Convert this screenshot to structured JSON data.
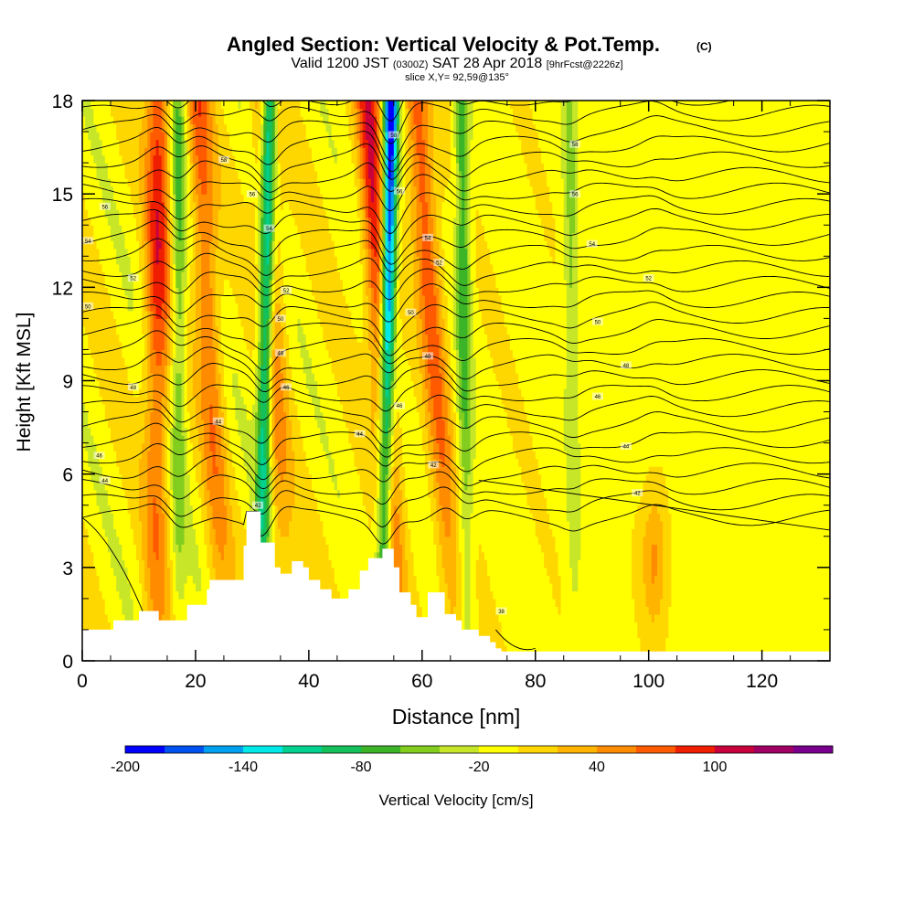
{
  "header": {
    "title": "Angled Section: Vertical Velocity & Pot.Temp.",
    "title_mark": "(C)",
    "valid_prefix": "Valid 1200 JST",
    "valid_zulu": "(0300Z)",
    "valid_date": "SAT 28 Apr 2018",
    "forecast_tag": "[9hrFcst@2226z]",
    "slice_info": "slice X,Y= 92,59@135°"
  },
  "chart_data": {
    "type": "heatmap",
    "xlabel": "Distance [nm]",
    "ylabel": "Height [Kft MSL]",
    "xlim": [
      0,
      132
    ],
    "ylim": [
      0,
      18
    ],
    "x_ticks": [
      0,
      20,
      40,
      60,
      80,
      100,
      120
    ],
    "y_ticks": [
      0,
      3,
      6,
      9,
      12,
      15,
      18
    ],
    "x_tick_labels": [
      "0",
      "20",
      "40",
      "60",
      "80",
      "100",
      "120"
    ],
    "y_tick_labels": [
      "0",
      "3",
      "6",
      "9",
      "12",
      "15",
      "18"
    ],
    "grid": false,
    "colorbar": {
      "label": "Vertical Velocity [cm/s]",
      "tick_values": [
        -200,
        -140,
        -80,
        -20,
        40,
        100
      ],
      "tick_labels": [
        "-200",
        "-140",
        "-80",
        "-20",
        "40",
        "100"
      ],
      "levels": [
        -200,
        -180,
        -160,
        -140,
        -120,
        -100,
        -80,
        -60,
        -40,
        -20,
        0,
        20,
        40,
        60,
        80,
        100,
        120,
        140
      ],
      "colors": [
        "#0000ff",
        "#0052f0",
        "#00a0f0",
        "#00e8e8",
        "#00d090",
        "#14c05a",
        "#3cb428",
        "#82cd1e",
        "#c8e628",
        "#ffff00",
        "#ffd700",
        "#ffb400",
        "#ff8c00",
        "#ff5a00",
        "#f01e00",
        "#c8003c",
        "#a00064",
        "#78008c"
      ]
    },
    "series": [
      {
        "name": "Vertical Velocity",
        "units": "cm/s",
        "representation": "filled contours along cross-section"
      },
      {
        "name": "Pot.Temp.",
        "units": "C",
        "representation": "line contours"
      }
    ],
    "terrain_profile": {
      "x": [
        0,
        5,
        5.5,
        10,
        13,
        13.5,
        18,
        18.5,
        22,
        22.5,
        27,
        28.5,
        29,
        31,
        31.5,
        34,
        35,
        37,
        39,
        40,
        42,
        44,
        45.5,
        47,
        49,
        50.5,
        53,
        54,
        55,
        56,
        58,
        59,
        61,
        62,
        64,
        66,
        67,
        70,
        72,
        73,
        74,
        132
      ],
      "height_kft": [
        1.0,
        1.0,
        1.3,
        1.6,
        1.6,
        1.3,
        1.3,
        1.8,
        2.3,
        2.6,
        2.6,
        3.7,
        4.8,
        4.8,
        3.8,
        3.0,
        2.8,
        3.2,
        3.0,
        2.6,
        2.3,
        2.0,
        2.0,
        2.3,
        2.9,
        3.3,
        3.6,
        3.6,
        3.0,
        2.2,
        1.8,
        1.4,
        2.2,
        2.2,
        1.5,
        1.3,
        1.0,
        0.8,
        0.6,
        0.4,
        0.3,
        0.3
      ]
    },
    "updraft_bands": [
      {
        "x_base": 13,
        "x_top": 13.5,
        "w_max_cm_s": 90
      },
      {
        "x_base": 25,
        "x_top": 20.5,
        "w_max_cm_s": 70
      },
      {
        "x_base": 36,
        "x_top": 32,
        "w_max_cm_s": 60
      },
      {
        "x_base": 56,
        "x_top": 50.5,
        "w_max_cm_s": 100
      },
      {
        "x_base": 66,
        "x_top": 59,
        "w_max_cm_s": 80
      },
      {
        "x_base": 101,
        "x_top": 101,
        "w_max_cm_s": 50
      }
    ],
    "downdraft_bands": [
      {
        "x_base": 31.5,
        "x_top": 33,
        "w_min_cm_s": -150
      },
      {
        "x_base": 53,
        "x_top": 54.5,
        "w_min_cm_s": -200
      },
      {
        "x_base": 68,
        "x_top": 67,
        "w_min_cm_s": -70
      },
      {
        "x_base": 17,
        "x_top": 17,
        "w_min_cm_s": -60
      },
      {
        "x_base": 87,
        "x_top": 86,
        "w_min_cm_s": -40
      }
    ],
    "theta_contour_labels": [
      {
        "text": "56",
        "x": 4,
        "height_kft": 14.6
      },
      {
        "text": "54",
        "x": 1,
        "height_kft": 13.5
      },
      {
        "text": "52",
        "x": 9,
        "height_kft": 12.3
      },
      {
        "text": "50",
        "x": 1,
        "height_kft": 11.4
      },
      {
        "text": "48",
        "x": 9,
        "height_kft": 8.8
      },
      {
        "text": "46",
        "x": 3,
        "height_kft": 6.6
      },
      {
        "text": "44",
        "x": 4,
        "height_kft": 5.8
      },
      {
        "text": "58",
        "x": 25,
        "height_kft": 16.1
      },
      {
        "text": "56",
        "x": 30,
        "height_kft": 15.0
      },
      {
        "text": "54",
        "x": 33,
        "height_kft": 13.9
      },
      {
        "text": "52",
        "x": 36,
        "height_kft": 11.9
      },
      {
        "text": "50",
        "x": 35,
        "height_kft": 11.0
      },
      {
        "text": "48",
        "x": 35,
        "height_kft": 9.9
      },
      {
        "text": "46",
        "x": 36,
        "height_kft": 8.8
      },
      {
        "text": "44",
        "x": 24,
        "height_kft": 7.7
      },
      {
        "text": "42",
        "x": 31,
        "height_kft": 5.0
      },
      {
        "text": "58",
        "x": 55,
        "height_kft": 16.9
      },
      {
        "text": "56",
        "x": 56,
        "height_kft": 15.1
      },
      {
        "text": "54",
        "x": 61,
        "height_kft": 13.6
      },
      {
        "text": "52",
        "x": 63,
        "height_kft": 12.8
      },
      {
        "text": "50",
        "x": 58,
        "height_kft": 11.2
      },
      {
        "text": "48",
        "x": 61,
        "height_kft": 9.8
      },
      {
        "text": "46",
        "x": 56,
        "height_kft": 8.2
      },
      {
        "text": "44",
        "x": 49,
        "height_kft": 7.3
      },
      {
        "text": "42",
        "x": 62,
        "height_kft": 6.3
      },
      {
        "text": "58",
        "x": 87,
        "height_kft": 16.6
      },
      {
        "text": "56",
        "x": 87,
        "height_kft": 15.0
      },
      {
        "text": "54",
        "x": 90,
        "height_kft": 13.4
      },
      {
        "text": "52",
        "x": 100,
        "height_kft": 12.3
      },
      {
        "text": "50",
        "x": 91,
        "height_kft": 10.9
      },
      {
        "text": "48",
        "x": 96,
        "height_kft": 9.5
      },
      {
        "text": "46",
        "x": 91,
        "height_kft": 8.5
      },
      {
        "text": "44",
        "x": 96,
        "height_kft": 6.9
      },
      {
        "text": "42",
        "x": 98,
        "height_kft": 5.4
      },
      {
        "text": "38",
        "x": 74,
        "height_kft": 1.6
      }
    ]
  }
}
